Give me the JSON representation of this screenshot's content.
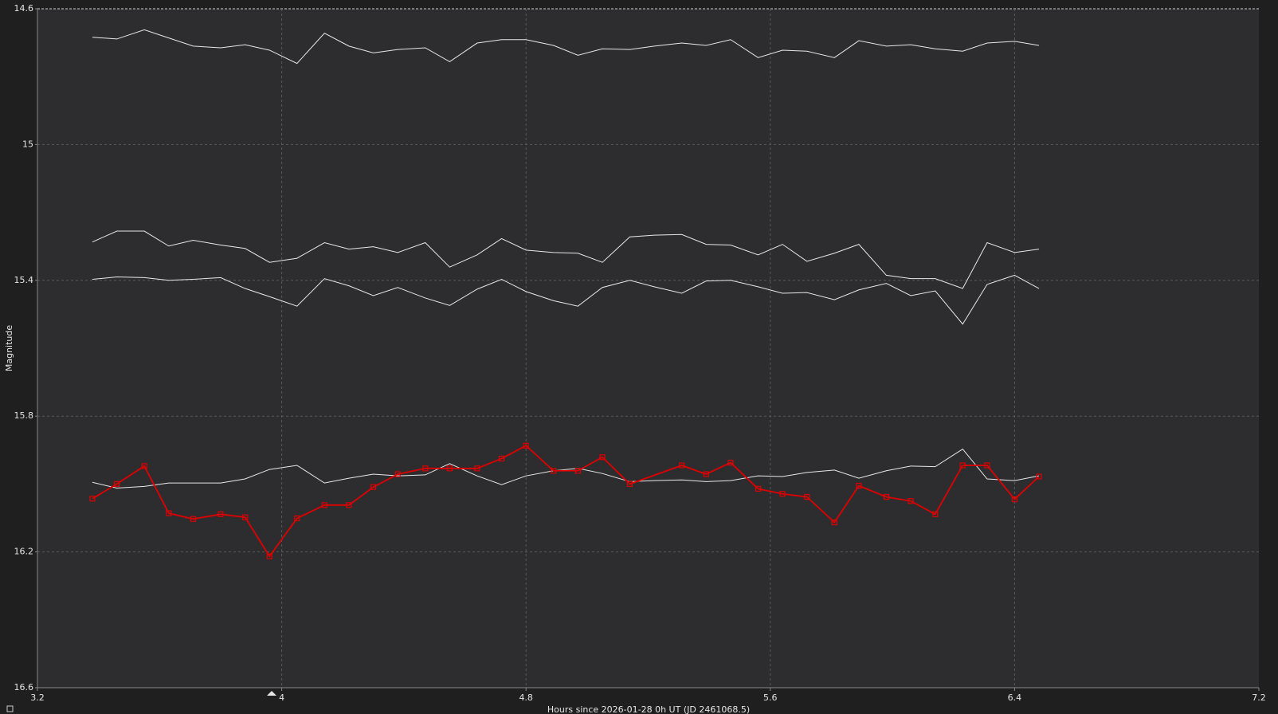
{
  "chart_data": {
    "type": "line",
    "x_label": "Hours since 2026-01-28 0h UT (JD 2461068.5)",
    "y_label": "Magnitude",
    "xlim": [
      3.2,
      7.2
    ],
    "xticks": [
      3.2,
      4,
      4.8,
      5.6,
      6.4,
      7.2
    ],
    "ylim": [
      16.6,
      14.6
    ],
    "yticks": [
      14.6,
      15,
      15.4,
      15.8,
      16.2,
      16.6
    ],
    "grid": true,
    "series": [
      {
        "color": "#e8e8e8",
        "x": [
          3.38,
          3.46,
          3.55,
          3.63,
          3.71,
          3.8,
          3.88,
          3.96,
          4.05,
          4.14,
          4.22,
          4.3,
          4.38,
          4.47,
          4.55,
          4.64,
          4.72,
          4.8,
          4.89,
          4.97,
          5.05,
          5.14,
          5.22,
          5.31,
          5.39,
          5.47,
          5.56,
          5.64,
          5.72,
          5.81,
          5.89,
          5.98,
          6.06,
          6.14,
          6.23,
          6.31,
          6.4,
          6.48
        ],
        "values": [
          14.684,
          14.689,
          14.662,
          14.686,
          14.71,
          14.715,
          14.706,
          14.722,
          14.761,
          14.672,
          14.71,
          14.73,
          14.72,
          14.715,
          14.756,
          14.701,
          14.691,
          14.691,
          14.708,
          14.737,
          14.718,
          14.72,
          14.71,
          14.701,
          14.708,
          14.691,
          14.744,
          14.722,
          14.725,
          14.744,
          14.694,
          14.71,
          14.706,
          14.718,
          14.725,
          14.701,
          14.696,
          14.708
        ]
      },
      {
        "color": "#e8e8e8",
        "x": [
          3.38,
          3.46,
          3.55,
          3.63,
          3.71,
          3.8,
          3.88,
          3.96,
          4.05,
          4.14,
          4.22,
          4.3,
          4.38,
          4.47,
          4.55,
          4.64,
          4.72,
          4.8,
          4.89,
          4.97,
          5.05,
          5.14,
          5.22,
          5.31,
          5.39,
          5.47,
          5.56,
          5.64,
          5.72,
          5.81,
          5.89,
          5.98,
          6.06,
          6.14,
          6.23,
          6.31,
          6.4,
          6.48
        ],
        "values": [
          15.287,
          15.255,
          15.255,
          15.299,
          15.282,
          15.296,
          15.306,
          15.347,
          15.335,
          15.289,
          15.308,
          15.301,
          15.318,
          15.289,
          15.361,
          15.325,
          15.277,
          15.311,
          15.318,
          15.32,
          15.347,
          15.272,
          15.267,
          15.265,
          15.294,
          15.296,
          15.325,
          15.294,
          15.344,
          15.32,
          15.294,
          15.385,
          15.395,
          15.395,
          15.424,
          15.289,
          15.318,
          15.308
        ]
      },
      {
        "color": "#e8e8e8",
        "x": [
          3.38,
          3.46,
          3.55,
          3.63,
          3.71,
          3.8,
          3.88,
          3.96,
          4.05,
          4.14,
          4.22,
          4.3,
          4.38,
          4.47,
          4.55,
          4.64,
          4.72,
          4.8,
          4.89,
          4.97,
          5.05,
          5.14,
          5.22,
          5.31,
          5.39,
          5.47,
          5.56,
          5.64,
          5.72,
          5.81,
          5.89,
          5.98,
          6.06,
          6.14,
          6.23,
          6.31,
          6.4,
          6.48
        ],
        "values": [
          15.397,
          15.39,
          15.392,
          15.4,
          15.397,
          15.392,
          15.424,
          15.448,
          15.476,
          15.395,
          15.416,
          15.445,
          15.421,
          15.452,
          15.474,
          15.426,
          15.397,
          15.433,
          15.46,
          15.476,
          15.421,
          15.4,
          15.419,
          15.438,
          15.402,
          15.4,
          15.419,
          15.438,
          15.436,
          15.457,
          15.428,
          15.409,
          15.445,
          15.431,
          15.529,
          15.412,
          15.385,
          15.424
        ]
      },
      {
        "color": "#e8e8e8",
        "x": [
          3.38,
          3.46,
          3.55,
          3.63,
          3.71,
          3.8,
          3.88,
          3.96,
          4.05,
          4.14,
          4.22,
          4.3,
          4.38,
          4.47,
          4.55,
          4.64,
          4.72,
          4.8,
          4.89,
          4.97,
          5.05,
          5.14,
          5.22,
          5.31,
          5.39,
          5.47,
          5.56,
          5.64,
          5.72,
          5.81,
          5.89,
          5.98,
          6.06,
          6.14,
          6.23,
          6.31,
          6.4,
          6.48
        ],
        "values": [
          15.995,
          16.012,
          16.007,
          15.997,
          15.997,
          15.997,
          15.985,
          15.957,
          15.945,
          15.997,
          15.983,
          15.971,
          15.976,
          15.973,
          15.94,
          15.976,
          16.002,
          15.976,
          15.961,
          15.954,
          15.969,
          15.993,
          15.99,
          15.988,
          15.993,
          15.99,
          15.976,
          15.978,
          15.966,
          15.959,
          15.983,
          15.961,
          15.947,
          15.949,
          15.897,
          15.985,
          15.99,
          15.976
        ]
      },
      {
        "color": "#e00000",
        "marker": "square",
        "x": [
          3.38,
          3.46,
          3.55,
          3.63,
          3.71,
          3.8,
          3.88,
          3.96,
          4.05,
          4.14,
          4.22,
          4.3,
          4.38,
          4.47,
          4.55,
          4.64,
          4.72,
          4.8,
          4.89,
          4.97,
          5.05,
          5.14,
          5.31,
          5.39,
          5.47,
          5.56,
          5.64,
          5.72,
          5.81,
          5.89,
          5.98,
          6.06,
          6.14,
          6.23,
          6.31,
          6.4,
          6.48
        ],
        "values": [
          16.043,
          16.0,
          15.947,
          16.086,
          16.103,
          16.089,
          16.098,
          16.213,
          16.101,
          16.062,
          16.062,
          16.009,
          15.971,
          15.954,
          15.954,
          15.954,
          15.925,
          15.887,
          15.961,
          15.961,
          15.921,
          16.0,
          15.945,
          15.971,
          15.937,
          16.014,
          16.029,
          16.038,
          16.113,
          16.005,
          16.038,
          16.05,
          16.089,
          15.945,
          15.945,
          16.045,
          15.978
        ]
      }
    ]
  }
}
